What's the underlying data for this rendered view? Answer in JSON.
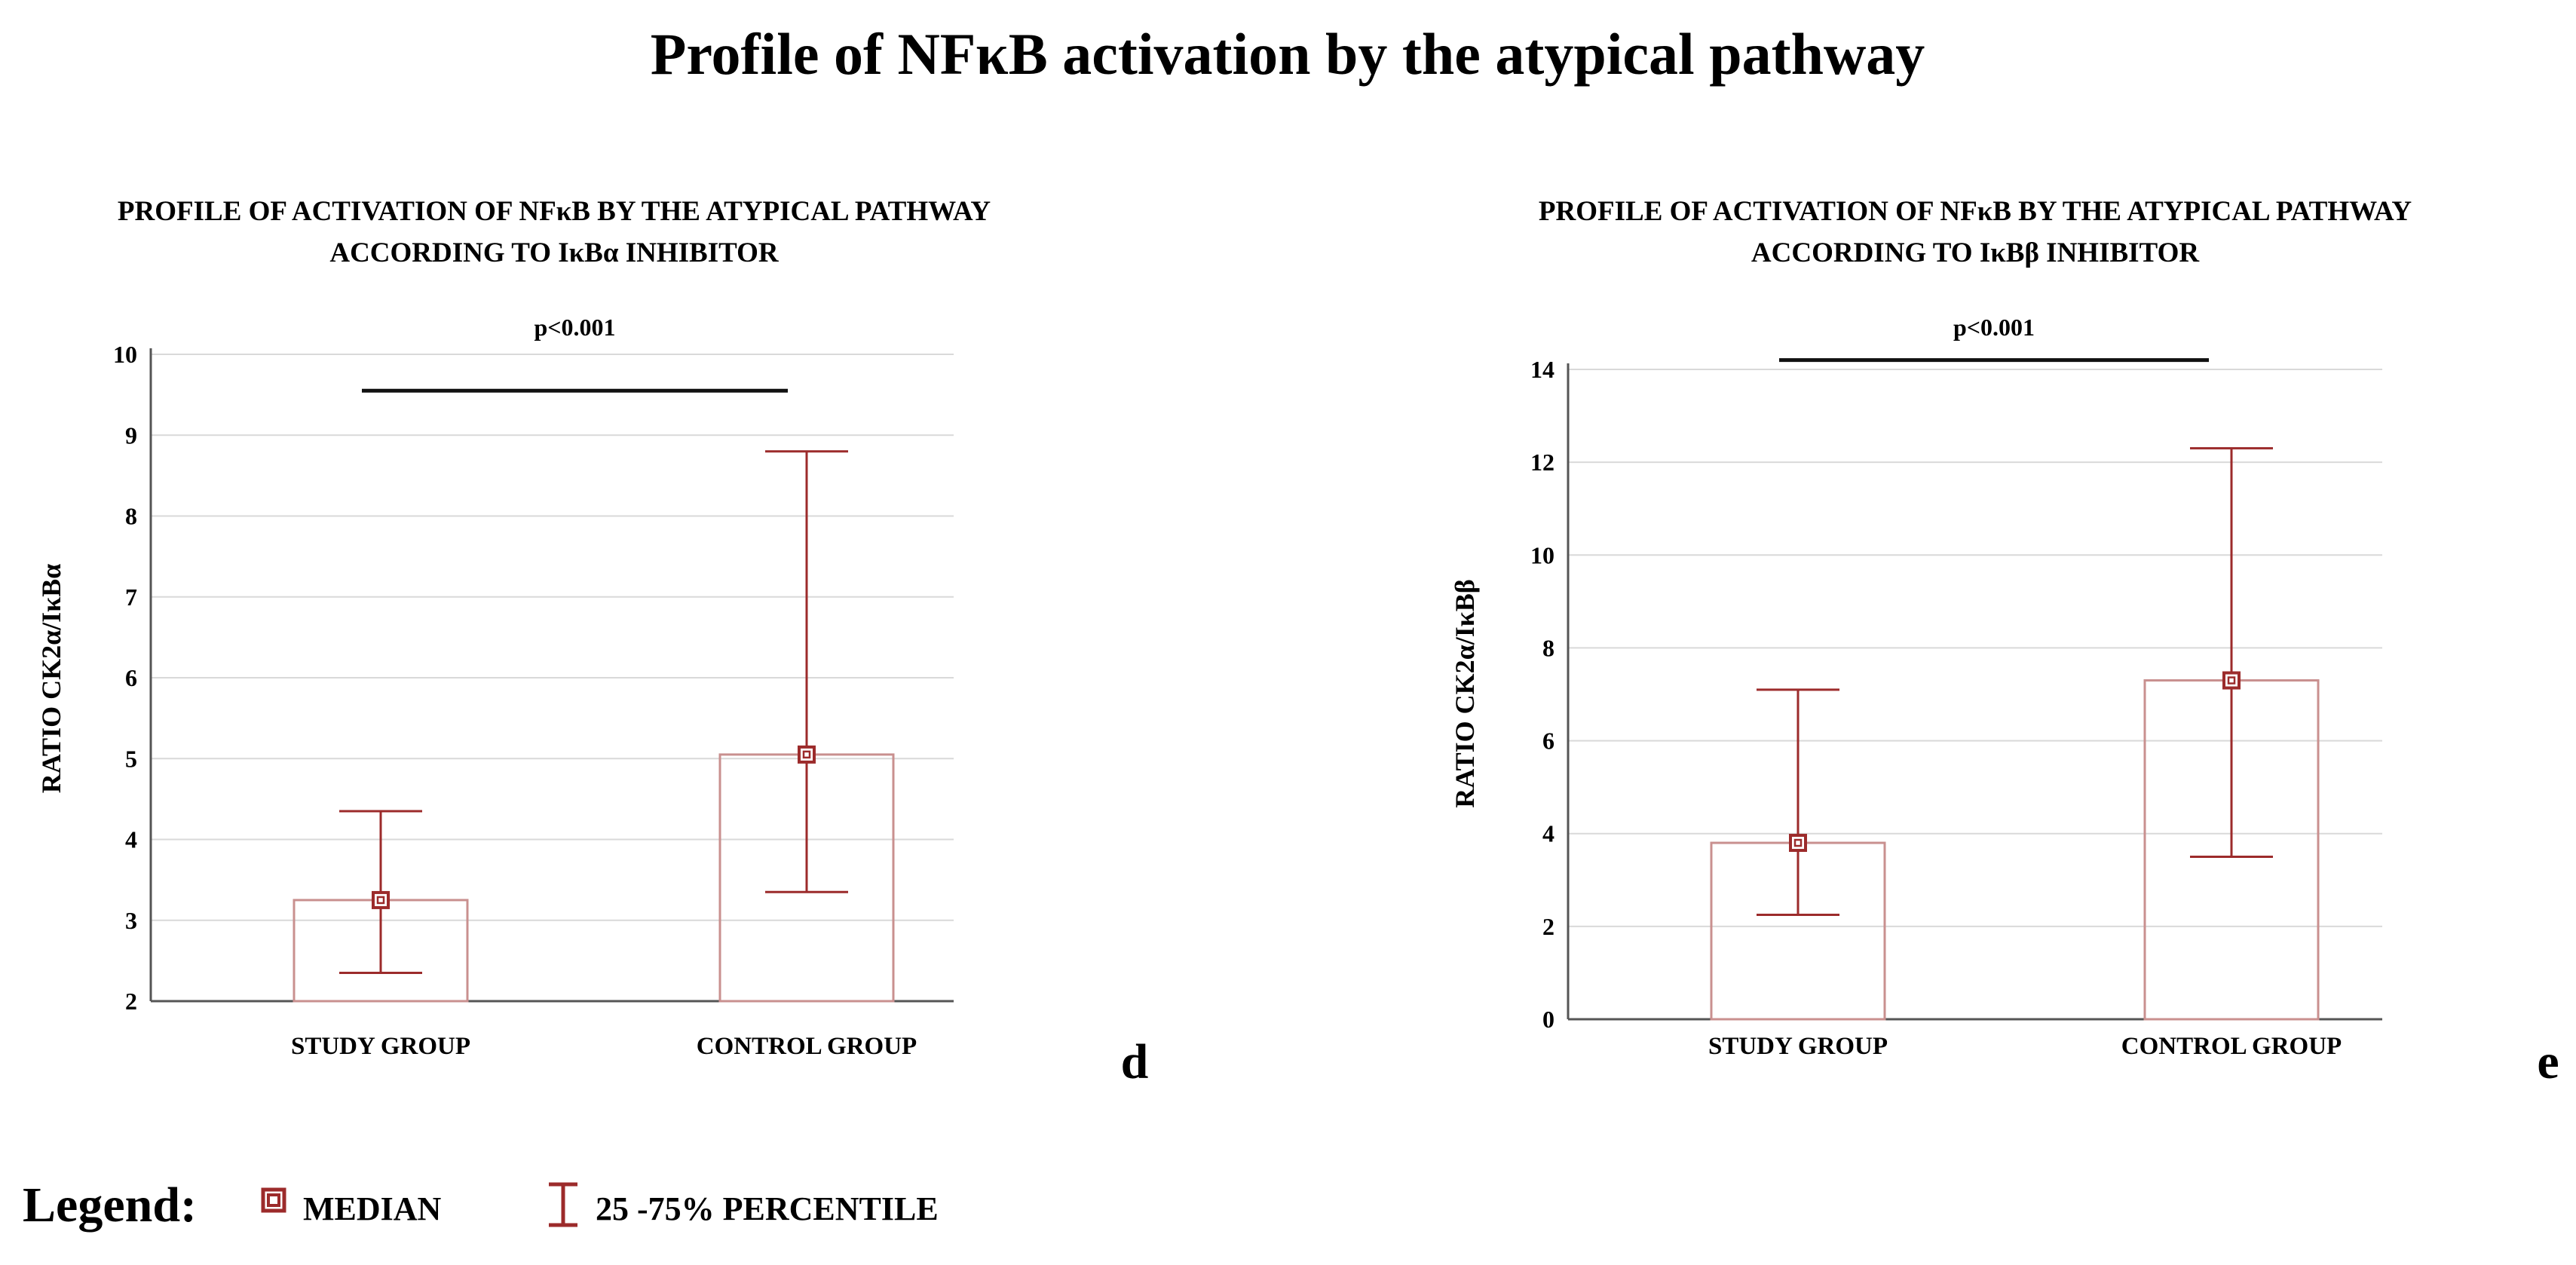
{
  "main_title": "Profile of NFκB activation by the atypical pathway",
  "legend": {
    "title": "Legend:",
    "median_label": "MEDIAN",
    "percentile_label": "25 -75% PERCENTILE"
  },
  "colors": {
    "marker": "#9c2b2b",
    "bar_outline": "#c9908f",
    "grid": "#d9d9d9",
    "axis": "#555555",
    "text": "#111111"
  },
  "chart_data": [
    {
      "type": "bar",
      "panel": "d",
      "title_lines": [
        "PROFILE OF ACTIVATION OF NFκB BY THE ATYPICAL PATHWAY",
        "ACCORDING TO IκBα INHIBITOR"
      ],
      "ylabel": "RATIO CK2α/IκBα",
      "categories": [
        "STUDY GROUP",
        "CONTROL GROUP"
      ],
      "ylim": [
        2,
        10
      ],
      "yticks": [
        "2",
        "3",
        "4",
        "5",
        "6",
        "7",
        "8",
        "9",
        "10"
      ],
      "grid": true,
      "series": [
        {
          "name": "MEDIAN",
          "values": [
            3.25,
            5.05
          ]
        },
        {
          "name": "25th PERCENTILE",
          "values": [
            2.35,
            3.35
          ]
        },
        {
          "name": "75th PERCENTILE",
          "values": [
            4.35,
            8.8
          ]
        }
      ],
      "significance": {
        "label": "p<0.001",
        "level": 9.55
      }
    },
    {
      "type": "bar",
      "panel": "e",
      "title_lines": [
        "PROFILE OF ACTIVATION OF NFκB BY THE ATYPICAL PATHWAY",
        "ACCORDING TO IκBβ INHIBITOR"
      ],
      "ylabel": "RATIO CK2α/IκBβ",
      "categories": [
        "STUDY GROUP",
        "CONTROL GROUP"
      ],
      "ylim": [
        0,
        14
      ],
      "yticks": [
        "0",
        "2",
        "4",
        "6",
        "8",
        "10",
        "12",
        "14"
      ],
      "grid": true,
      "series": [
        {
          "name": "MEDIAN",
          "values": [
            3.8,
            7.3
          ]
        },
        {
          "name": "25th PERCENTILE",
          "values": [
            2.25,
            3.5
          ]
        },
        {
          "name": "75th PERCENTILE",
          "values": [
            7.1,
            12.3
          ]
        }
      ],
      "significance": {
        "label": "p<0.001",
        "level": 14.2
      }
    }
  ]
}
